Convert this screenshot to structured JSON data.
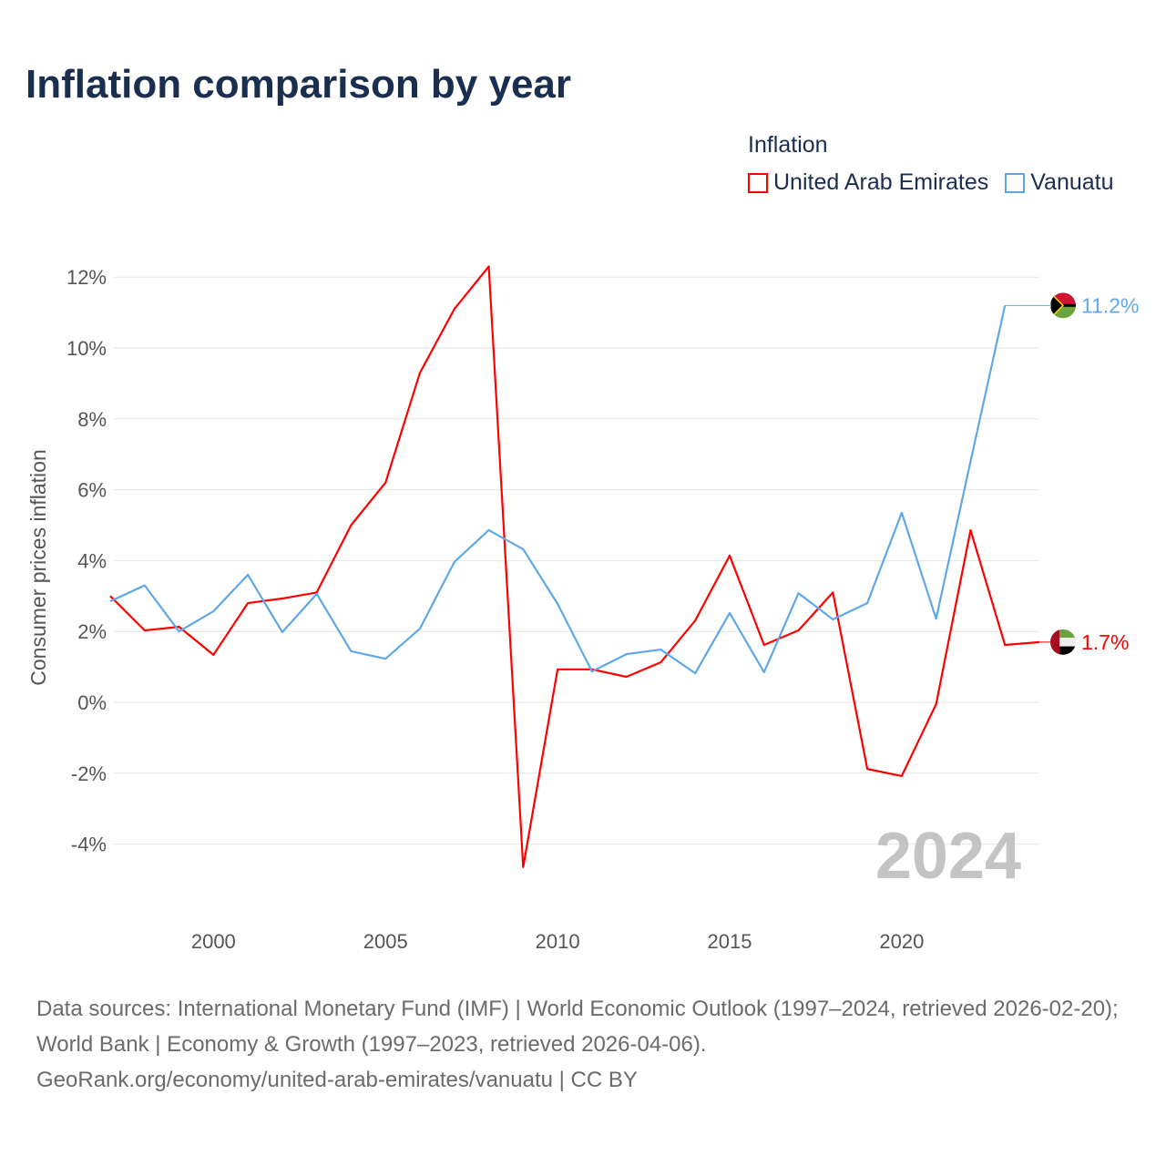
{
  "title": "Inflation comparison by year",
  "legend": {
    "title": "Inflation",
    "items": [
      "United Arab Emirates",
      "Vanuatu"
    ]
  },
  "footer": {
    "line1": "Data sources: International Monetary Fund (IMF) | World Economic Outlook (1997–2024, retrieved 2026-02-20); World Bank | Economy & Growth (1997–2023, retrieved 2026-04-06).",
    "line2": "GeoRank.org/economy/united-arab-emirates/vanuatu | CC BY"
  },
  "chart_data": {
    "type": "line",
    "title": "Inflation comparison by year",
    "xlabel": "",
    "ylabel": "Consumer prices inflation",
    "xlim": [
      1997,
      2024
    ],
    "ylim": [
      -5.5,
      12.8
    ],
    "x_ticks": [
      2000,
      2005,
      2010,
      2015,
      2020
    ],
    "y_ticks": [
      -4,
      -2,
      0,
      2,
      4,
      6,
      8,
      10,
      12
    ],
    "y_tick_labels": [
      "-4%",
      "-2%",
      "0%",
      "2%",
      "4%",
      "6%",
      "8%",
      "10%",
      "12%"
    ],
    "grid": true,
    "legend_position": "top-right",
    "year_watermark": "2024",
    "series": [
      {
        "name": "United Arab Emirates",
        "color": "#ff0000",
        "end_label": "1.7%",
        "start_year": 1997,
        "values": [
          3.0,
          2.03,
          2.13,
          1.34,
          2.8,
          2.93,
          3.1,
          5.0,
          6.2,
          9.3,
          11.1,
          12.3,
          -4.65,
          0.93,
          0.93,
          0.72,
          1.13,
          2.31,
          4.14,
          1.62,
          2.03,
          3.1,
          -1.88,
          -2.08,
          -0.05,
          4.86,
          1.62,
          1.7
        ]
      },
      {
        "name": "Vanuatu",
        "color": "#5fa8e8",
        "end_label": "11.2%",
        "start_year": 1997,
        "values": [
          2.85,
          3.3,
          2.0,
          2.57,
          3.6,
          1.98,
          3.06,
          1.44,
          1.23,
          2.08,
          3.96,
          4.86,
          4.32,
          2.78,
          0.87,
          1.36,
          1.49,
          0.82,
          2.52,
          0.85,
          3.08,
          2.34,
          2.8,
          5.35,
          2.36,
          6.8,
          11.2
        ]
      }
    ]
  }
}
